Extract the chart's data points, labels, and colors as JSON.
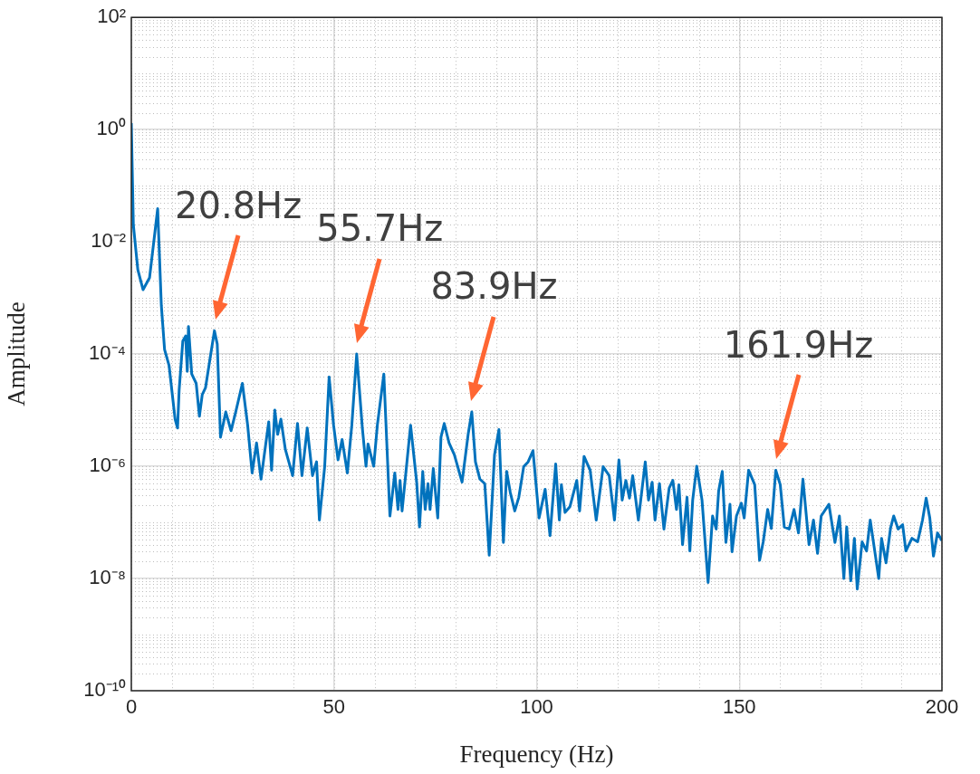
{
  "chart_data": {
    "type": "line",
    "xlabel": "Frequency (Hz)",
    "ylabel": "Amplitude",
    "log": "y",
    "grid": true,
    "legend": false,
    "marker": "none",
    "line_style": "solid",
    "xlim": [
      0,
      200
    ],
    "xticks": [
      0,
      50,
      100,
      150,
      200
    ],
    "ylim": [
      1e-10,
      100
    ],
    "yticks": [
      {
        "value": 1e-10,
        "label": "10⁻¹⁰"
      },
      {
        "value": 1e-08,
        "label": "10⁻⁸"
      },
      {
        "value": 1e-06,
        "label": "10⁻⁶"
      },
      {
        "value": 0.0001,
        "label": "10⁻⁴"
      },
      {
        "value": 0.01,
        "label": "10⁻²"
      },
      {
        "value": 1,
        "label": "10⁰"
      },
      {
        "value": 100,
        "label": "10²"
      }
    ],
    "annotations": [
      {
        "text": "20.8Hz",
        "x": 20.8,
        "y": 0.00026
      },
      {
        "text": "55.7Hz",
        "x": 55.7,
        "y": 0.0001
      },
      {
        "text": "83.9Hz",
        "x": 83.9,
        "y": 9.3e-06
      },
      {
        "text": "161.9Hz",
        "x": 159.0,
        "y": 8.5e-07
      }
    ],
    "series": [
      {
        "color": "#0072bd",
        "x": [
          0,
          0.5,
          1.6,
          2.9,
          4.5,
          6.5,
          7.4,
          8.2,
          9.3,
          10.8,
          11.4,
          11.8,
          12.7,
          13.4,
          13.8,
          14.1,
          14.9,
          16.0,
          16.8,
          17.5,
          18.3,
          19.4,
          20.5,
          21.2,
          22.0,
          23.3,
          24.6,
          25.7,
          27.4,
          28.7,
          29.8,
          30.9,
          32.0,
          33.1,
          33.9,
          34.6,
          35.4,
          36.1,
          36.9,
          38.0,
          39.8,
          41.0,
          42.1,
          43.4,
          44.7,
          45.7,
          46.4,
          47.7,
          48.8,
          49.9,
          51.0,
          52.0,
          53.3,
          54.4,
          55.6,
          57.0,
          57.9,
          58.4,
          59.8,
          60.7,
          62.3,
          63.8,
          65.0,
          65.8,
          66.3,
          66.8,
          68.9,
          70.4,
          71.1,
          71.9,
          72.5,
          73.2,
          73.7,
          74.5,
          75.6,
          76.4,
          77.2,
          78.4,
          79.7,
          81.6,
          83.1,
          84.0,
          84.9,
          86.0,
          87.2,
          88.3,
          89.6,
          90.7,
          91.8,
          92.6,
          93.5,
          94.6,
          95.6,
          96.8,
          97.9,
          99.1,
          100.6,
          102.1,
          103.3,
          104.7,
          105.6,
          106.1,
          107.0,
          108.2,
          109.9,
          110.6,
          111.7,
          113.2,
          114.7,
          116.4,
          117.9,
          119.2,
          120.3,
          121.1,
          122.0,
          122.9,
          123.7,
          125.1,
          126.8,
          127.6,
          128.5,
          129.2,
          130.3,
          131.4,
          132.7,
          133.6,
          134.5,
          135.1,
          136.0,
          137.1,
          137.8,
          138.5,
          139.5,
          140.8,
          142.3,
          143.4,
          144.3,
          144.9,
          145.8,
          146.7,
          147.7,
          148.2,
          149.3,
          150.5,
          151.2,
          152.3,
          153.8,
          155.0,
          155.9,
          157.0,
          157.9,
          159.0,
          160.1,
          161.1,
          162.3,
          163.5,
          164.6,
          165.7,
          167.2,
          168.3,
          169.3,
          170.2,
          172.1,
          173.6,
          174.7,
          175.8,
          176.5,
          177.5,
          178.4,
          179.1,
          180.3,
          181.4,
          182.3,
          183.6,
          184.4,
          185.1,
          186.2,
          187.3,
          188.1,
          189.2,
          190.3,
          191.1,
          192.6,
          194.0,
          195.2,
          196.1,
          197.0,
          197.9,
          198.9,
          200
        ],
        "values": [
          1.3,
          0.02,
          0.0032,
          0.0014,
          0.0023,
          0.039,
          0.00074,
          0.00012,
          6.3e-05,
          6.9e-06,
          4.8e-06,
          2.3e-05,
          0.00017,
          0.00021,
          4.9e-05,
          0.00031,
          4.4e-05,
          3e-05,
          7.8e-06,
          1.9e-05,
          2.5e-05,
          8.1e-05,
          0.00026,
          0.00015,
          3.3e-06,
          9.3e-06,
          4.3e-06,
          8.9e-06,
          3e-05,
          5.4e-06,
          7.6e-07,
          2.6e-06,
          5.9e-07,
          2.3e-06,
          6.2e-06,
          8.5e-07,
          1e-05,
          3.7e-06,
          6.9e-06,
          2e-06,
          6.8e-07,
          5.8e-06,
          6.8e-07,
          4.8e-06,
          6.8e-07,
          1.2e-06,
          1.1e-07,
          9.8e-07,
          3.9e-05,
          5.4e-06,
          1.3e-06,
          3e-06,
          7.6e-07,
          5.4e-06,
          0.0001,
          4.8e-06,
          1e-06,
          2.5e-06,
          1e-06,
          5.4e-06,
          4.4e-05,
          1.3e-07,
          7.6e-07,
          1.7e-07,
          5.6e-07,
          1.6e-07,
          5.4e-06,
          5.2e-07,
          8.3e-08,
          8.1e-07,
          1.7e-07,
          4.9e-07,
          1.7e-07,
          9.1e-07,
          1.2e-07,
          3.3e-06,
          5.8e-06,
          2.6e-06,
          1.6e-06,
          5.2e-07,
          3.7e-06,
          9.3e-06,
          1.2e-06,
          5.9e-07,
          4.9e-07,
          2.6e-08,
          1.6e-06,
          4.5e-06,
          4.4e-08,
          8.1e-07,
          3.4e-07,
          1.6e-07,
          2.8e-07,
          9.8e-07,
          1.2e-06,
          1.9e-06,
          1.2e-07,
          3.9e-07,
          5.8e-08,
          1.1e-06,
          1.1e-07,
          4.7e-07,
          1.5e-07,
          1.9e-07,
          5.6e-07,
          1.6e-07,
          1.5e-06,
          8.5e-07,
          1.1e-07,
          9.8e-07,
          6.8e-07,
          1.1e-07,
          1.3e-06,
          2.5e-07,
          5.6e-07,
          2.7e-07,
          6.8e-07,
          1.1e-07,
          1.2e-06,
          2.5e-07,
          5.2e-07,
          1.1e-07,
          4.9e-07,
          7.6e-08,
          4.1e-07,
          5.6e-07,
          1.7e-07,
          4.7e-07,
          4e-08,
          2.8e-07,
          3.1e-08,
          2.5e-07,
          1e-06,
          2.5e-07,
          8.5e-09,
          1.3e-07,
          7.6e-08,
          3.6e-07,
          8.1e-07,
          4.4e-08,
          2.1e-07,
          3e-08,
          1.3e-07,
          2.2e-07,
          1.2e-07,
          8.5e-07,
          4.7e-07,
          2.1e-08,
          4.5e-08,
          1.7e-07,
          7.8e-08,
          8.5e-07,
          4.7e-07,
          8.3e-08,
          7.6e-08,
          1.7e-07,
          6.5e-08,
          5.9e-07,
          4e-08,
          1.1e-07,
          2.8e-08,
          1.3e-07,
          2.1e-07,
          4.4e-08,
          1.3e-07,
          1e-08,
          8.3e-08,
          9.1e-09,
          5.2e-08,
          6.5e-09,
          4.5e-08,
          3.1e-08,
          1.1e-07,
          2.5e-08,
          1e-08,
          5.2e-08,
          1.9e-08,
          7.8e-08,
          1.3e-07,
          7.6e-08,
          9.1e-08,
          3.1e-08,
          5.2e-08,
          4.5e-08,
          1.1e-07,
          2.7e-07,
          1.2e-07,
          2.5e-08,
          6.5e-08,
          4.7e-08
        ]
      }
    ]
  }
}
